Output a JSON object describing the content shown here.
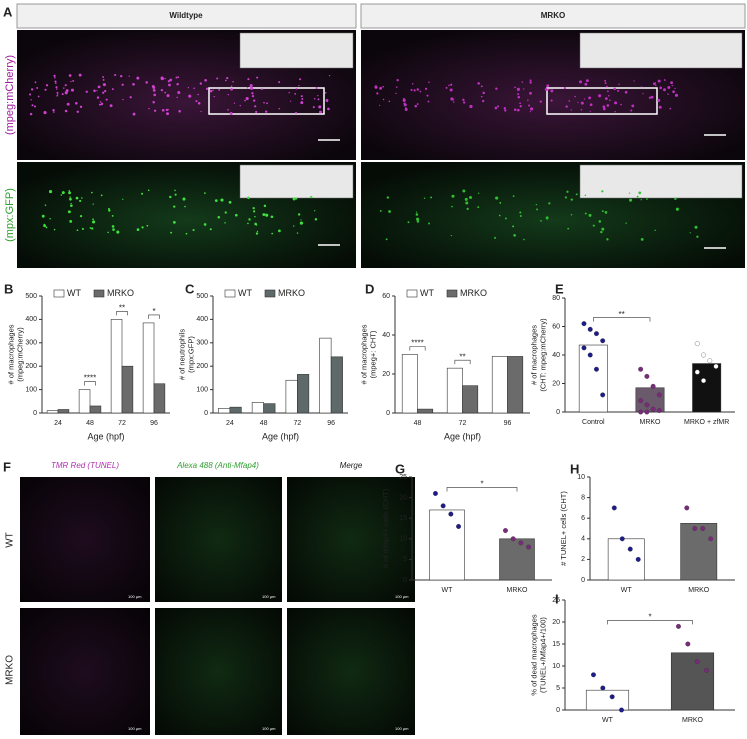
{
  "panel_a": {
    "panel": "A",
    "headers": [
      "Wildtype",
      "MRKO"
    ],
    "rows": [
      "(mpeg:mCherry)",
      "(mpx:GFP)"
    ]
  },
  "panel_f": {
    "panel": "F",
    "headers": [
      "TMR Red (TUNEL)",
      "Alexa 488 (Anti-Mfap4)",
      "Merge"
    ],
    "rows": [
      "WT",
      "MRKO"
    ],
    "scale": "100 µm"
  },
  "chart_data": [
    {
      "type": "bar",
      "panel": "B",
      "ylabel": [
        "# of macrophages",
        "(mpeg:mCherry)"
      ],
      "xlabel": "Age (hpf)",
      "legend": true,
      "categories": [
        "24",
        "48",
        "72",
        "96"
      ],
      "ylim": [
        0,
        500
      ],
      "yticks": [
        0,
        100,
        200,
        300,
        400,
        500
      ],
      "series": [
        {
          "name": "WT",
          "color": "#ffffff",
          "point_color": "#1c1c8a",
          "values": [
            10,
            100,
            400,
            385
          ]
        },
        {
          "name": "MRKO",
          "color": "#6b6b6b",
          "point_color": "#7a2a7a",
          "values": [
            15,
            30,
            200,
            125
          ]
        }
      ],
      "annotations": [
        {
          "text": "****",
          "categories": [
            "48"
          ]
        },
        {
          "text": "**",
          "categories": [
            "72"
          ]
        },
        {
          "text": "*",
          "categories": [
            "96"
          ]
        }
      ]
    },
    {
      "type": "bar",
      "panel": "C",
      "ylabel": [
        "# of neutrophils",
        "(mpx:GFP)"
      ],
      "xlabel": "Age (hpf)",
      "legend": true,
      "categories": [
        "24",
        "48",
        "72",
        "96"
      ],
      "ylim": [
        0,
        500
      ],
      "yticks": [
        0,
        100,
        200,
        300,
        400,
        500
      ],
      "series": [
        {
          "name": "WT",
          "color": "#ffffff",
          "point_color": "#c8b48a",
          "values": [
            20,
            45,
            140,
            320
          ]
        },
        {
          "name": "MRKO",
          "color": "#5e6a6a",
          "point_color": "#1f5a5a",
          "values": [
            25,
            40,
            165,
            240
          ]
        }
      ],
      "annotations": []
    },
    {
      "type": "bar",
      "panel": "D",
      "ylabel": [
        "# of macrophages",
        "(mpeg+: CHT)"
      ],
      "xlabel": "Age (hpf)",
      "legend": true,
      "categories": [
        "48",
        "72",
        "96"
      ],
      "ylim": [
        0,
        60
      ],
      "yticks": [
        0,
        20,
        40,
        60
      ],
      "series": [
        {
          "name": "WT",
          "color": "#ffffff",
          "point_color": "#1c1c8a",
          "values": [
            30,
            23,
            29
          ]
        },
        {
          "name": "MRKO",
          "color": "#6b6b6b",
          "point_color": "#7a2a7a",
          "values": [
            2,
            14,
            29
          ]
        }
      ],
      "annotations": [
        {
          "text": "****",
          "categories": [
            "48"
          ]
        },
        {
          "text": "**",
          "categories": [
            "72"
          ]
        }
      ]
    },
    {
      "type": "bar",
      "panel": "E",
      "ylabel": [
        "# of macrophages",
        "(CHT: mpeg:mCherry)"
      ],
      "legend": false,
      "categories": [
        "Control",
        "MRKO",
        "MRKO + zfMR"
      ],
      "ylim": [
        0,
        80
      ],
      "yticks": [
        0,
        20,
        40,
        60,
        80
      ],
      "series": [
        {
          "colors": [
            "#ffffff",
            "#6b5a6b",
            "#111111"
          ],
          "point_color": "#1c1c8a",
          "values": [
            47,
            17,
            34
          ],
          "points": [
            [
              62,
              58,
              55,
              50,
              45,
              40,
              30,
              12
            ],
            [
              30,
              25,
              18,
              12,
              8,
              5,
              2,
              1,
              0,
              0
            ],
            [
              48,
              40,
              36,
              32,
              28,
              22
            ]
          ]
        }
      ],
      "annotations": [
        {
          "text": "**",
          "categories": [
            "Control",
            "MRKO"
          ]
        }
      ]
    },
    {
      "type": "bar",
      "panel": "G",
      "ylabel": [
        "# of mfap4+ cells (CHT)"
      ],
      "legend": false,
      "categories": [
        "WT",
        "MRKO"
      ],
      "ylim": [
        0,
        25
      ],
      "yticks": [
        0,
        5,
        10,
        15,
        20,
        25
      ],
      "series": [
        {
          "colors": [
            "#ffffff",
            "#6b6b6b"
          ],
          "point_color": "#1c1c8a",
          "values": [
            17,
            10
          ],
          "points": [
            [
              21,
              18,
              16,
              13
            ],
            [
              12,
              10,
              9,
              8
            ]
          ]
        }
      ],
      "annotations": [
        {
          "text": "*",
          "categories": [
            "WT",
            "MRKO"
          ]
        }
      ]
    },
    {
      "type": "bar",
      "panel": "H",
      "ylabel": [
        "# TUNEL+ cells (CHT)"
      ],
      "legend": false,
      "categories": [
        "WT",
        "MRKO"
      ],
      "ylim": [
        0,
        10
      ],
      "yticks": [
        0,
        2,
        4,
        6,
        8,
        10
      ],
      "series": [
        {
          "colors": [
            "#ffffff",
            "#6b6b6b"
          ],
          "point_color": "#1c1c8a",
          "values": [
            4,
            5.5
          ],
          "points": [
            [
              7,
              4,
              3,
              2
            ],
            [
              7,
              5,
              5,
              4
            ]
          ]
        }
      ],
      "annotations": []
    },
    {
      "type": "bar",
      "panel": "I",
      "ylabel": [
        "% of dead macrophages",
        "(TUNEL+/Mfap4+/100)"
      ],
      "legend": false,
      "categories": [
        "WT",
        "MRKO"
      ],
      "ylim": [
        0,
        25
      ],
      "yticks": [
        0,
        5,
        10,
        15,
        20,
        25
      ],
      "series": [
        {
          "colors": [
            "#ffffff",
            "#555555"
          ],
          "point_color": "#1c1c8a",
          "values": [
            4.5,
            13
          ],
          "points": [
            [
              8,
              5,
              3,
              0
            ],
            [
              19,
              15,
              11,
              9
            ]
          ]
        }
      ],
      "annotations": [
        {
          "text": "*",
          "categories": [
            "WT",
            "MRKO"
          ]
        }
      ]
    }
  ]
}
